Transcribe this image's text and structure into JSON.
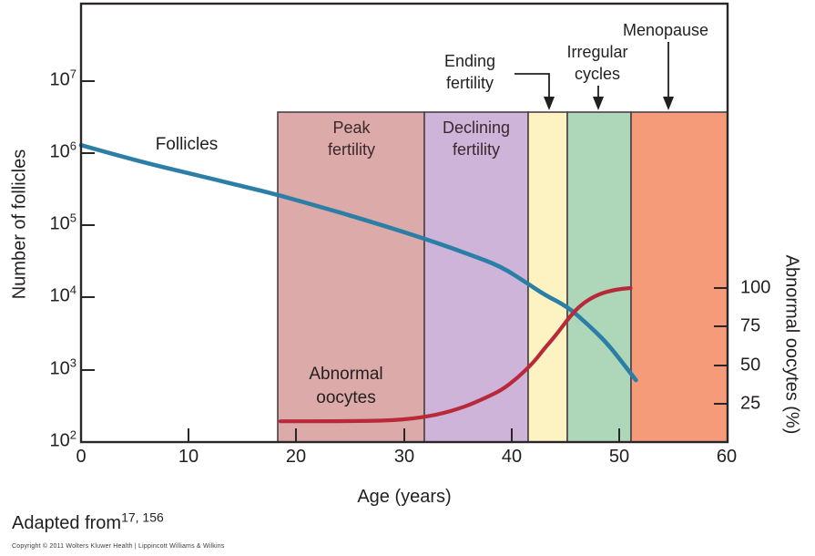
{
  "axes": {
    "left": {
      "label": "Number of follicles",
      "scale": "log10",
      "ticks": [
        {
          "b": "10",
          "e": "7"
        },
        {
          "b": "10",
          "e": "6"
        },
        {
          "b": "10",
          "e": "5"
        },
        {
          "b": "10",
          "e": "4"
        },
        {
          "b": "10",
          "e": "3"
        },
        {
          "b": "10",
          "e": "2"
        }
      ]
    },
    "right": {
      "label": "Abnormal oocytes (%)",
      "ticks": [
        "100",
        "75",
        "50",
        "25"
      ]
    },
    "x": {
      "label": "Age (years)",
      "ticks": [
        "0",
        "10",
        "20",
        "30",
        "40",
        "50",
        "60"
      ]
    }
  },
  "curve_labels": {
    "follicles": "Follicles",
    "abnormal": "Abnormal\noocytes"
  },
  "bands": [
    {
      "name": "Peak fertility",
      "label": "Peak\nfertility",
      "color": "#dcaaa8",
      "age_start": 18.5,
      "age_end": 32
    },
    {
      "name": "Declining fertility",
      "label": "Declining\nfertility",
      "color": "#cdb4d8",
      "age_start": 32,
      "age_end": 41.5
    },
    {
      "name": "Ending fertility",
      "label": "",
      "color": "#fdf2c2",
      "age_start": 41.5,
      "age_end": 45
    },
    {
      "name": "Irregular cycles",
      "label": "",
      "color": "#aed7ba",
      "age_start": 45,
      "age_end": 51
    },
    {
      "name": "Menopause",
      "label": "",
      "color": "#f59b79",
      "age_start": 51,
      "age_end": 60
    }
  ],
  "annotations": [
    {
      "label": "Ending\nfertility",
      "points_to_age": 43.5
    },
    {
      "label": "Irregular\ncycles",
      "points_to_age": 48
    },
    {
      "label": "Menopause",
      "points_to_age": 54.5
    }
  ],
  "footer": {
    "adapted": "Adapted from",
    "refs": "17, 156",
    "copyright": "Copyright © 2011 Wolters Kluwer Health | Lippincott Williams & Wilkins"
  },
  "chart_data": {
    "type": "line",
    "xlabel": "Age (years)",
    "ylabel_left": "Number of follicles",
    "ylabel_right": "Abnormal oocytes (%)",
    "x_range": [
      0,
      60
    ],
    "y_left_log_range": [
      100,
      10000000
    ],
    "y_right_range_pct": [
      0,
      100
    ],
    "grid": false,
    "legend_position": "inline-labels",
    "series": [
      {
        "name": "Follicles",
        "axis": "left",
        "color": "#2b7fa6",
        "x": [
          0,
          5,
          10,
          15,
          18.5,
          22,
          26,
          32,
          36,
          39,
          41.5,
          43,
          45.2,
          47,
          48.7,
          50,
          51,
          51.5
        ],
        "y": [
          1300000,
          800000,
          530000,
          350000,
          260000,
          185000,
          124000,
          65000,
          40000,
          27000,
          15500,
          11000,
          7400,
          4300,
          2450,
          1400,
          900,
          720
        ]
      },
      {
        "name": "Abnormal oocytes",
        "axis": "right",
        "color": "#b8293a",
        "x": [
          18.5,
          26,
          30,
          33,
          35.5,
          37.5,
          39,
          40.5,
          42,
          43,
          44,
          45.3,
          46.5,
          48,
          49.5,
          51
        ],
        "y": [
          14,
          14,
          15,
          18,
          23,
          29,
          34,
          42,
          52,
          61,
          69,
          81,
          90,
          96,
          99,
          100
        ]
      }
    ],
    "phase_bands": [
      {
        "label": "Peak fertility",
        "age": [
          18.5,
          32
        ]
      },
      {
        "label": "Declining fertility",
        "age": [
          32,
          41.5
        ]
      },
      {
        "label": "Ending fertility",
        "age": [
          41.5,
          45
        ]
      },
      {
        "label": "Irregular cycles",
        "age": [
          45,
          51
        ]
      },
      {
        "label": "Menopause",
        "age": [
          51,
          60
        ]
      }
    ]
  }
}
